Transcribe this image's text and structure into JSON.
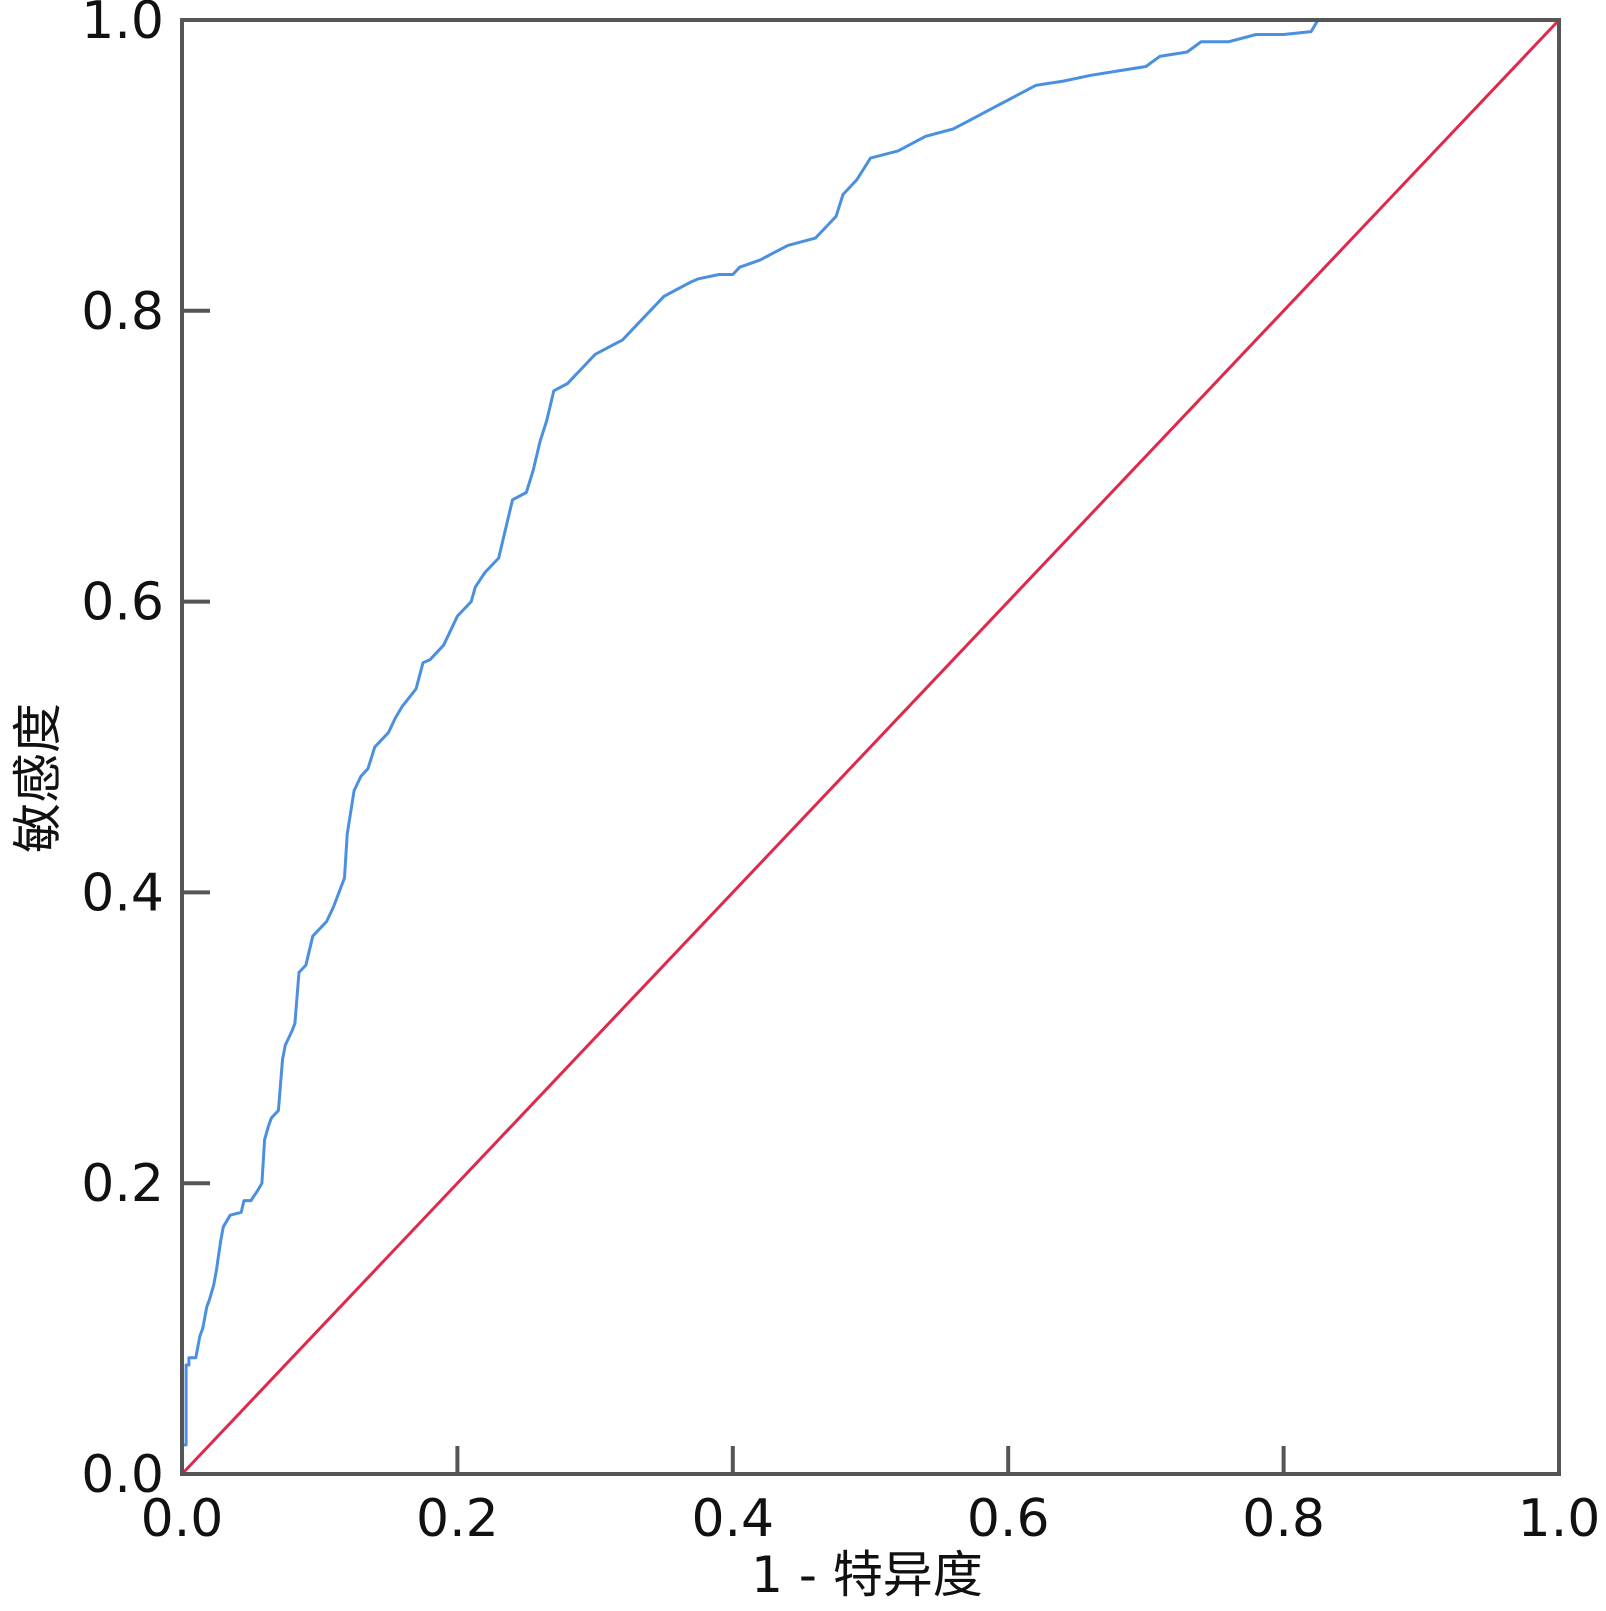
{
  "chart_data": {
    "type": "line",
    "title": "",
    "xlabel": "1 - 特异度",
    "ylabel": "敏感度",
    "xlim": [
      0.0,
      1.0
    ],
    "ylim": [
      0.0,
      1.0
    ],
    "x_ticks": [
      "0.0",
      "0.2",
      "0.4",
      "0.6",
      "0.8",
      "1.0"
    ],
    "y_ticks": [
      "0.0",
      "0.2",
      "0.4",
      "0.6",
      "0.8",
      "1.0"
    ],
    "grid": false,
    "legend": "none",
    "colors": {
      "roc": "#4a8fe0",
      "reference": "#e0284a",
      "axes": "#555555"
    },
    "series": [
      {
        "role": "roc",
        "x": [
          0.0,
          0.0,
          0.003,
          0.003,
          0.005,
          0.005,
          0.01,
          0.013,
          0.015,
          0.018,
          0.02,
          0.023,
          0.025,
          0.028,
          0.03,
          0.035,
          0.043,
          0.045,
          0.05,
          0.055,
          0.058,
          0.06,
          0.063,
          0.065,
          0.07,
          0.073,
          0.075,
          0.08,
          0.082,
          0.085,
          0.09,
          0.095,
          0.1,
          0.105,
          0.11,
          0.118,
          0.12,
          0.125,
          0.13,
          0.135,
          0.14,
          0.145,
          0.15,
          0.155,
          0.16,
          0.17,
          0.175,
          0.18,
          0.19,
          0.195,
          0.2,
          0.21,
          0.213,
          0.22,
          0.228,
          0.23,
          0.235,
          0.24,
          0.25,
          0.255,
          0.26,
          0.265,
          0.27,
          0.28,
          0.285,
          0.29,
          0.3,
          0.31,
          0.32,
          0.33,
          0.34,
          0.35,
          0.36,
          0.37,
          0.375,
          0.39,
          0.4,
          0.405,
          0.42,
          0.43,
          0.44,
          0.46,
          0.47,
          0.475,
          0.48,
          0.49,
          0.5,
          0.52,
          0.54,
          0.56,
          0.57,
          0.59,
          0.6,
          0.62,
          0.64,
          0.66,
          0.68,
          0.7,
          0.71,
          0.73,
          0.74,
          0.76,
          0.78,
          0.8,
          0.82,
          0.825,
          0.85,
          0.9,
          0.95,
          1.0
        ],
        "y": [
          0.0,
          0.02,
          0.02,
          0.075,
          0.075,
          0.08,
          0.08,
          0.095,
          0.1,
          0.115,
          0.12,
          0.13,
          0.14,
          0.16,
          0.17,
          0.178,
          0.18,
          0.188,
          0.188,
          0.195,
          0.2,
          0.23,
          0.24,
          0.245,
          0.25,
          0.285,
          0.295,
          0.305,
          0.31,
          0.345,
          0.35,
          0.37,
          0.375,
          0.38,
          0.39,
          0.41,
          0.44,
          0.47,
          0.48,
          0.485,
          0.5,
          0.505,
          0.51,
          0.52,
          0.528,
          0.54,
          0.558,
          0.56,
          0.57,
          0.58,
          0.59,
          0.6,
          0.61,
          0.62,
          0.628,
          0.63,
          0.65,
          0.67,
          0.675,
          0.69,
          0.71,
          0.725,
          0.745,
          0.75,
          0.755,
          0.76,
          0.77,
          0.775,
          0.78,
          0.79,
          0.8,
          0.81,
          0.815,
          0.82,
          0.822,
          0.825,
          0.825,
          0.83,
          0.835,
          0.84,
          0.845,
          0.85,
          0.86,
          0.865,
          0.88,
          0.89,
          0.905,
          0.91,
          0.92,
          0.925,
          0.93,
          0.94,
          0.945,
          0.955,
          0.958,
          0.962,
          0.965,
          0.968,
          0.975,
          0.978,
          0.985,
          0.985,
          0.99,
          0.99,
          0.992,
          1.0,
          1.0,
          1.0,
          1.0,
          1.0
        ]
      },
      {
        "role": "reference",
        "x": [
          0.0,
          1.0
        ],
        "y": [
          0.0,
          1.0
        ]
      }
    ]
  }
}
